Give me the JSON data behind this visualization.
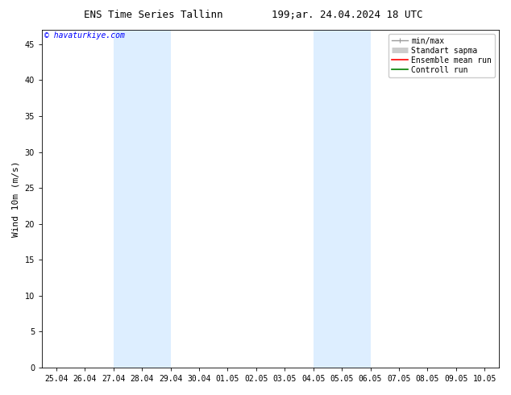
{
  "title_left": "ENS Time Series Tallinn",
  "title_right": "199;ar. 24.04.2024 18 UTC",
  "ylabel": "Wind 10m (m/s)",
  "watermark": "© havaturkiye.com",
  "ylim": [
    0,
    47
  ],
  "yticks": [
    0,
    5,
    10,
    15,
    20,
    25,
    30,
    35,
    40,
    45
  ],
  "xtick_labels": [
    "25.04",
    "26.04",
    "27.04",
    "28.04",
    "29.04",
    "30.04",
    "01.05",
    "02.05",
    "03.05",
    "04.05",
    "05.05",
    "06.05",
    "07.05",
    "08.05",
    "09.05",
    "10.05"
  ],
  "shaded_bands": [
    {
      "xstart": "27.04",
      "xend": "29.04"
    },
    {
      "xstart": "04.05",
      "xend": "06.05"
    }
  ],
  "shaded_color": "#ddeeff",
  "background_color": "#ffffff",
  "plot_bg_color": "#ffffff",
  "legend_entries": [
    {
      "label": "min/max",
      "color": "#999999",
      "lw": 1.0
    },
    {
      "label": "Standart sapma",
      "color": "#cccccc",
      "lw": 5
    },
    {
      "label": "Ensemble mean run",
      "color": "#ff0000",
      "lw": 1.2
    },
    {
      "label": "Controll run",
      "color": "#008000",
      "lw": 1.2
    }
  ],
  "title_fontsize": 9,
  "ylabel_fontsize": 8,
  "tick_fontsize": 7,
  "legend_fontsize": 7,
  "watermark_fontsize": 7
}
